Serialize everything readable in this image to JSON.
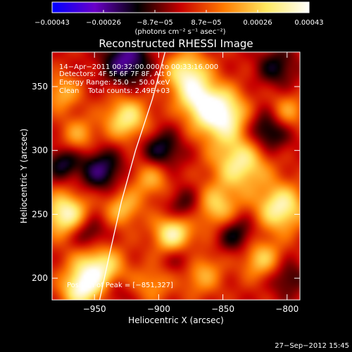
{
  "chart_data": {
    "type": "heatmap",
    "title": "Reconstructed RHESSI Image",
    "xlabel": "Heliocentric X (arcsec)",
    "ylabel": "Heliocentric Y (arcsec)",
    "xlim": [
      -983,
      -790
    ],
    "ylim": [
      183,
      377
    ],
    "xticks": [
      -950,
      -900,
      -850,
      -800
    ],
    "yticks": [
      200,
      250,
      300,
      350
    ],
    "xtick_labels": [
      "−950",
      "−900",
      "−850",
      "−800"
    ],
    "ytick_labels": [
      "200",
      "250",
      "300",
      "350"
    ],
    "colorbar": {
      "range": [
        -0.00043,
        0.00043
      ],
      "tick_labels": [
        "−0.00043",
        "−0.00026",
        "−8.7e−05",
        "8.7e−05",
        "0.00026",
        "0.00043"
      ],
      "unit_label": "(photons cm⁻² s⁻¹ asec⁻²)",
      "colormap": [
        "#0000ff",
        "#6a00c8",
        "#000000",
        "#c80000",
        "#ff7a00",
        "#ffe860",
        "#ffffff"
      ]
    },
    "info_lines": [
      "14−Apr−2011 00:32:00.000 to 00:33:16.000",
      "Detectors: 4F 5F 6F 7F 8F, Att 0",
      "Energy Range: 25.0 − 50.0 keV",
      "Clean    Total counts: 2.49E+03"
    ],
    "peak_label": "Position of Peak = [−851,327]",
    "peak": [
      -851,
      327
    ],
    "limb": [
      [
        -946,
        183
      ],
      [
        -938,
        220
      ],
      [
        -929,
        260
      ],
      [
        -918,
        300
      ],
      [
        -905,
        340
      ],
      [
        -895,
        377
      ]
    ],
    "blobs": [
      {
        "x": -852,
        "y": 328,
        "v": 1.0,
        "s": 14
      },
      {
        "x": -836,
        "y": 290,
        "v": 0.75,
        "s": 15
      },
      {
        "x": -805,
        "y": 255,
        "v": 0.8,
        "s": 13
      },
      {
        "x": -972,
        "y": 250,
        "v": 0.85,
        "s": 12
      },
      {
        "x": -948,
        "y": 205,
        "v": 0.9,
        "s": 14
      },
      {
        "x": -962,
        "y": 190,
        "v": 0.6,
        "s": 10
      },
      {
        "x": -888,
        "y": 235,
        "v": 0.85,
        "s": 11
      },
      {
        "x": -925,
        "y": 325,
        "v": 0.7,
        "s": 12
      },
      {
        "x": -878,
        "y": 360,
        "v": 0.75,
        "s": 12
      },
      {
        "x": -870,
        "y": 340,
        "v": 0.55,
        "s": 11
      },
      {
        "x": -855,
        "y": 255,
        "v": 0.6,
        "s": 12
      },
      {
        "x": -906,
        "y": 278,
        "v": 0.45,
        "s": 11
      },
      {
        "x": -928,
        "y": 255,
        "v": 0.5,
        "s": 10
      },
      {
        "x": -975,
        "y": 345,
        "v": 0.45,
        "s": 10
      },
      {
        "x": -962,
        "y": 312,
        "v": 0.4,
        "s": 10
      },
      {
        "x": -820,
        "y": 215,
        "v": 0.55,
        "s": 11
      },
      {
        "x": -868,
        "y": 205,
        "v": 0.5,
        "s": 12
      },
      {
        "x": -800,
        "y": 330,
        "v": 0.45,
        "s": 10
      },
      {
        "x": -905,
        "y": 195,
        "v": 0.35,
        "s": 10
      },
      {
        "x": -925,
        "y": 370,
        "v": -0.65,
        "s": 13
      },
      {
        "x": -815,
        "y": 315,
        "v": -0.55,
        "s": 12
      },
      {
        "x": -898,
        "y": 300,
        "v": -0.5,
        "s": 11
      },
      {
        "x": -945,
        "y": 285,
        "v": -0.55,
        "s": 12
      },
      {
        "x": -880,
        "y": 255,
        "v": -0.4,
        "s": 11
      },
      {
        "x": -955,
        "y": 235,
        "v": -0.45,
        "s": 10
      },
      {
        "x": -840,
        "y": 235,
        "v": -0.45,
        "s": 11
      },
      {
        "x": -880,
        "y": 215,
        "v": -0.4,
        "s": 10
      },
      {
        "x": -800,
        "y": 200,
        "v": -0.35,
        "s": 10
      },
      {
        "x": -935,
        "y": 190,
        "v": -0.35,
        "s": 9
      },
      {
        "x": -808,
        "y": 365,
        "v": -0.4,
        "s": 11
      },
      {
        "x": -975,
        "y": 290,
        "v": -0.45,
        "s": 9
      }
    ]
  },
  "timestamp": "27−Sep−2012 15:45"
}
